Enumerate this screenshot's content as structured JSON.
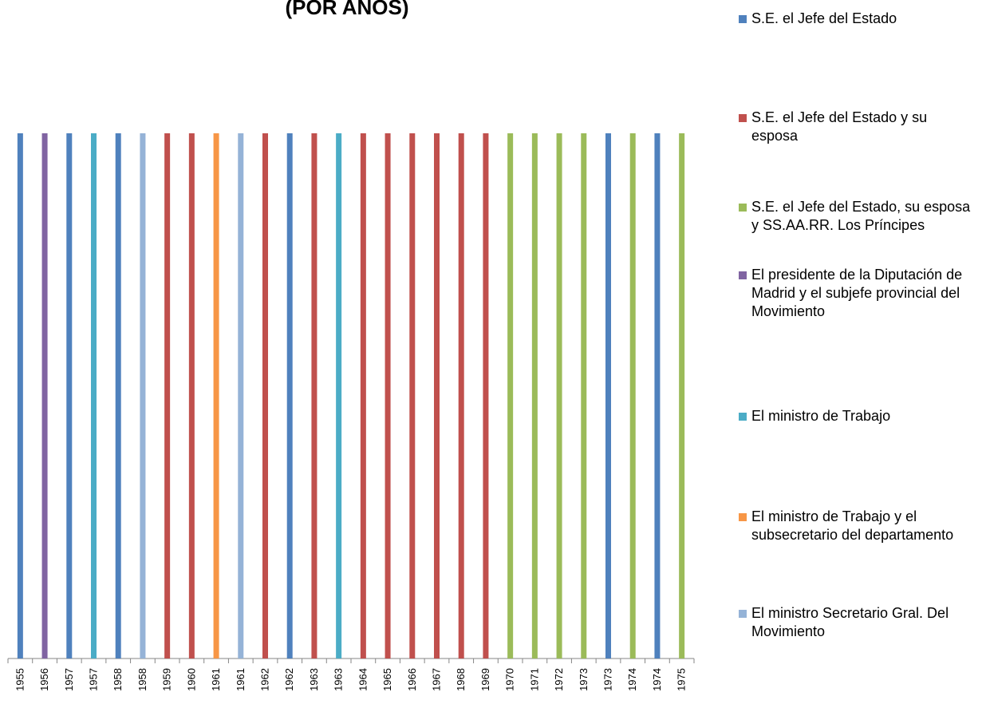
{
  "chart_data": {
    "type": "bar",
    "stacked": true,
    "title": "(POR AÑOS)",
    "categories": [
      "1955",
      "1956",
      "1957",
      "1957",
      "1958",
      "1958",
      "1959",
      "1960",
      "1961",
      "1961",
      "1962",
      "1962",
      "1963",
      "1963",
      "1964",
      "1965",
      "1966",
      "1967",
      "1968",
      "1969",
      "1970",
      "1971",
      "1972",
      "1973",
      "1973",
      "1974",
      "1974",
      "1975"
    ],
    "series": [
      {
        "name": "S.E. el Jefe del Estado",
        "color": "#4f81bd",
        "values": [
          1,
          null,
          1,
          null,
          1,
          null,
          null,
          null,
          null,
          null,
          null,
          1,
          null,
          null,
          null,
          null,
          null,
          null,
          null,
          null,
          null,
          null,
          null,
          null,
          1,
          null,
          1,
          null
        ]
      },
      {
        "name": "S.E. el Jefe del Estado y su esposa",
        "color": "#c0504d",
        "values": [
          null,
          null,
          null,
          null,
          null,
          null,
          1,
          1,
          null,
          null,
          1,
          null,
          1,
          null,
          1,
          1,
          1,
          1,
          1,
          1,
          null,
          null,
          null,
          null,
          null,
          null,
          null,
          null
        ]
      },
      {
        "name": "S.E. el Jefe del Estado, su esposa y SS.AA.RR. Los Príncipes",
        "color": "#9bbb59",
        "values": [
          null,
          null,
          null,
          null,
          null,
          null,
          null,
          null,
          null,
          null,
          null,
          null,
          null,
          null,
          null,
          null,
          null,
          null,
          null,
          null,
          1,
          1,
          1,
          1,
          null,
          1,
          null,
          1
        ]
      },
      {
        "name": "El presidente de la Diputación de Madrid  y el subjefe provincial del Movimiento",
        "color": "#8064a2",
        "values": [
          null,
          1,
          null,
          null,
          null,
          null,
          null,
          null,
          null,
          null,
          null,
          null,
          null,
          null,
          null,
          null,
          null,
          null,
          null,
          null,
          null,
          null,
          null,
          null,
          null,
          null,
          null,
          null
        ]
      },
      {
        "name": "El ministro de Trabajo",
        "color": "#4bacc6",
        "values": [
          null,
          null,
          null,
          1,
          null,
          null,
          null,
          null,
          null,
          null,
          null,
          null,
          null,
          1,
          null,
          null,
          null,
          null,
          null,
          null,
          null,
          null,
          null,
          null,
          null,
          null,
          null,
          null
        ]
      },
      {
        "name": "El ministro de Trabajo y el subsecretario del departamento",
        "color": "#f79646",
        "values": [
          null,
          null,
          null,
          null,
          null,
          null,
          null,
          null,
          1,
          null,
          null,
          null,
          null,
          null,
          null,
          null,
          null,
          null,
          null,
          null,
          null,
          null,
          null,
          null,
          null,
          null,
          null,
          null
        ]
      },
      {
        "name": "El ministro Secretario Gral. Del Movimiento",
        "color": "#95b3d7",
        "values": [
          null,
          null,
          null,
          null,
          null,
          1,
          null,
          null,
          null,
          1,
          null,
          null,
          null,
          null,
          null,
          null,
          null,
          null,
          null,
          null,
          null,
          null,
          null,
          null,
          null,
          null,
          null,
          null
        ]
      }
    ]
  }
}
